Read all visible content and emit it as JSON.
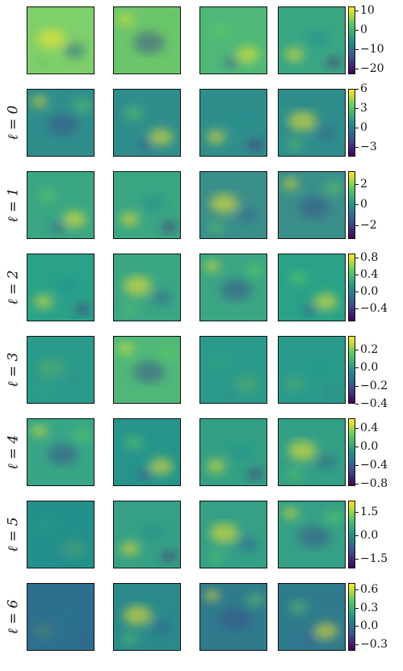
{
  "figure": {
    "rows": [
      {
        "label": "",
        "ticks": [
          "10",
          "0",
          "−10",
          "−20"
        ],
        "tick_values": [
          10,
          0,
          -10,
          -20
        ],
        "range": [
          -23,
          12
        ],
        "panels": [
          "#7fcf6a",
          "#6bc56a",
          "#4fb879",
          "#3aa684"
        ]
      },
      {
        "label": "ℓ = 0",
        "ticks": [
          "6",
          "3",
          "0",
          "−3"
        ],
        "tick_values": [
          6,
          3,
          0,
          -3
        ],
        "range": [
          -4.5,
          6
        ],
        "panels": [
          "#2f8e8c",
          "#2f8e8c",
          "#2f8e8c",
          "#2f8e8c"
        ]
      },
      {
        "label": "ℓ = 1",
        "ticks": [
          "2",
          "0",
          "−2"
        ],
        "tick_values": [
          2,
          0,
          -2
        ],
        "range": [
          -3.3,
          3.2
        ],
        "panels": [
          "#3aa684",
          "#3aa684",
          "#3a8f8a",
          "#3a8f8a"
        ]
      },
      {
        "label": "ℓ = 2",
        "ticks": [
          "0.8",
          "0.4",
          "0.0",
          "−0.4"
        ],
        "tick_values": [
          0.8,
          0.4,
          0.0,
          -0.4
        ],
        "range": [
          -0.7,
          0.9
        ],
        "panels": [
          "#2aa288",
          "#3aa684",
          "#3aa684",
          "#2aa288"
        ]
      },
      {
        "label": "ℓ = 3",
        "ticks": [
          "0.2",
          "0.0",
          "−0.2",
          "−0.4"
        ],
        "tick_values": [
          0.2,
          0.0,
          -0.2,
          -0.4
        ],
        "range": [
          -0.4,
          0.35
        ],
        "panels": [
          "#2a9b8a",
          "#4fb879",
          "#2a9b8a",
          "#2a9b8a"
        ]
      },
      {
        "label": "ℓ = 4",
        "ticks": [
          "0.4",
          "0.0",
          "−0.4",
          "−0.8"
        ],
        "tick_values": [
          0.4,
          0.0,
          -0.4,
          -0.8
        ],
        "range": [
          -0.85,
          0.6
        ],
        "panels": [
          "#38a686",
          "#26948b",
          "#33a085",
          "#33a085"
        ]
      },
      {
        "label": "ℓ = 5",
        "ticks": [
          "1.5",
          "0.0",
          "−1.5"
        ],
        "tick_values": [
          1.5,
          0.0,
          -1.5
        ],
        "range": [
          -2.1,
          2.2
        ],
        "panels": [
          "#23908b",
          "#35a086",
          "#35a086",
          "#35a086"
        ]
      },
      {
        "label": "ℓ = 6",
        "ticks": [
          "0.6",
          "0.3",
          "0.0",
          "−0.3"
        ],
        "tick_values": [
          0.6,
          0.3,
          0.0,
          -0.3
        ],
        "range": [
          -0.4,
          0.7
        ],
        "panels": [
          "#2d6f8e",
          "#2a8a8b",
          "#2f7a8d",
          "#2f7a8d"
        ]
      }
    ]
  }
}
